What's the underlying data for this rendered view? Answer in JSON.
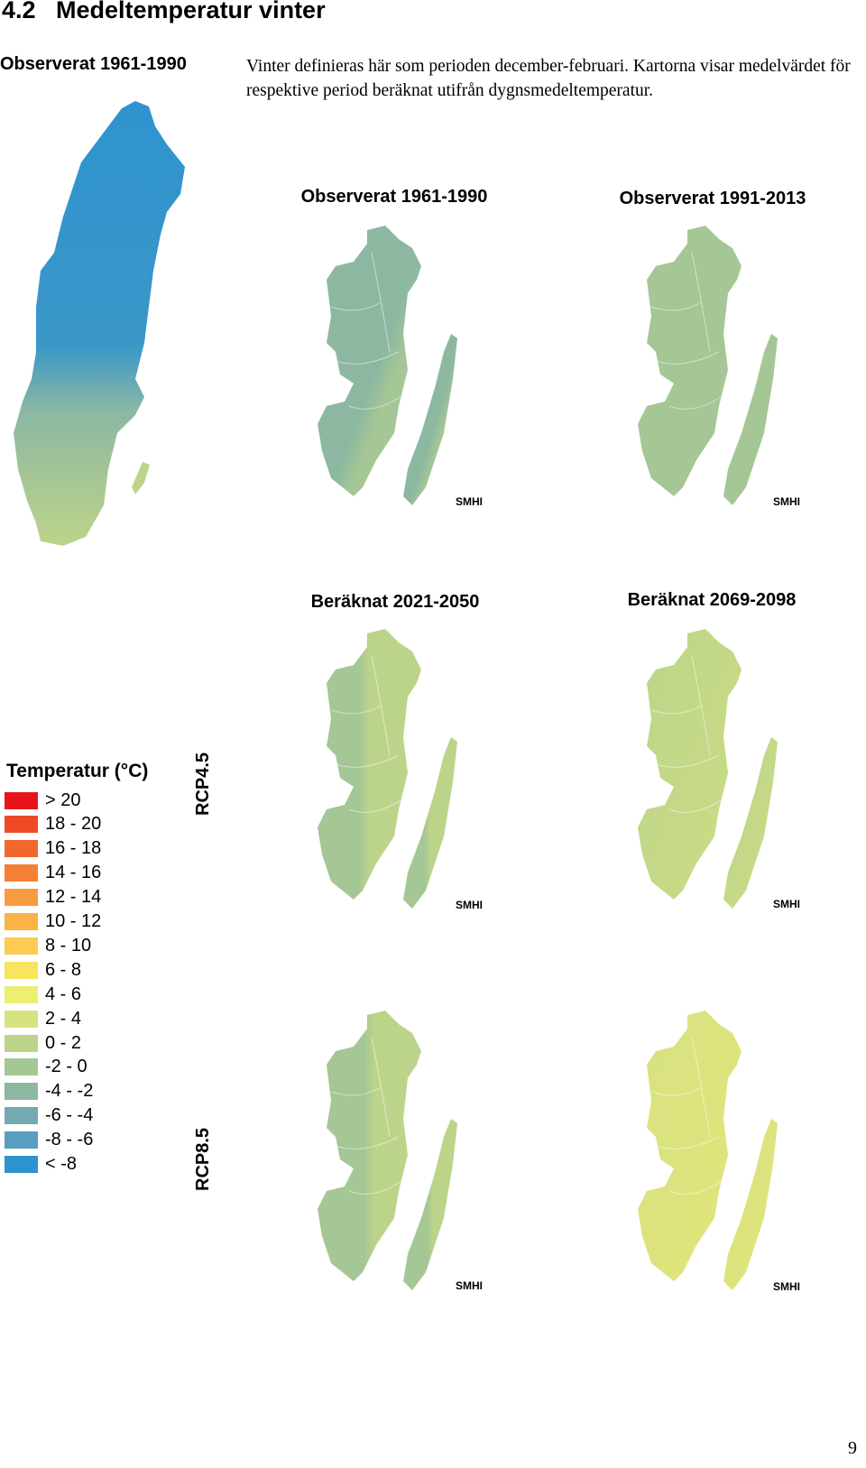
{
  "header": {
    "section_number": "4.2",
    "title": "Medeltemperatur vinter"
  },
  "sidebar_label": "Observerat 1961-1990",
  "intro": "Vinter definieras här som perioden december-februari. Kartorna visar medelvärdet för respektive period beräknat utifrån dygnsmedeltemperatur.",
  "map_grid": {
    "top_titles": [
      "Observerat 1961-1990",
      "Observerat 1991-2013"
    ],
    "bottom_titles": [
      "Beräknat 2021-2050",
      "Beräknat 2069-2098"
    ],
    "row_labels": [
      "RCP4.5",
      "RCP8.5"
    ],
    "logos": [
      "SMHI",
      "SMHI",
      "SMHI",
      "SMHI",
      "SMHI",
      "SMHI"
    ]
  },
  "legend": {
    "title": "Temperatur (°C)",
    "items": [
      {
        "label": "> 20",
        "color": "#e8141c"
      },
      {
        "label": "18 - 20",
        "color": "#ee4a26"
      },
      {
        "label": "16 - 18",
        "color": "#f2672d"
      },
      {
        "label": "14 - 16",
        "color": "#f58034"
      },
      {
        "label": "12 - 14",
        "color": "#f89a3e"
      },
      {
        "label": "10 - 12",
        "color": "#fbb247"
      },
      {
        "label": "8 - 10",
        "color": "#fdcb52"
      },
      {
        "label": "6 - 8",
        "color": "#f8e45e"
      },
      {
        "label": "4 - 6",
        "color": "#ecef70"
      },
      {
        "label": "2 - 4",
        "color": "#d7e283"
      },
      {
        "label": "0 - 2",
        "color": "#bcd48a"
      },
      {
        "label": "-2 - 0",
        "color": "#a5c695"
      },
      {
        "label": "-4 - -2",
        "color": "#8cb8a2"
      },
      {
        "label": "-6 - -4",
        "color": "#74a9b0"
      },
      {
        "label": "-8 - -6",
        "color": "#589ebf"
      },
      {
        "label": "< -8",
        "color": "#2f93cf"
      }
    ]
  },
  "page_number": "9"
}
